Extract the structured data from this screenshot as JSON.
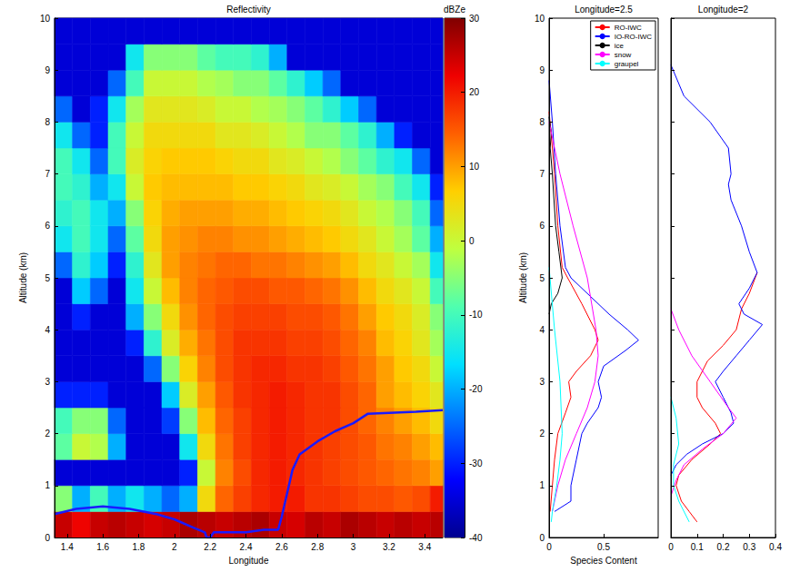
{
  "chart_data": [
    {
      "type": "heatmap",
      "title": "Reflectivity",
      "xlabel": "Longitude",
      "ylabel": "Altitude (km)",
      "xlim": [
        1.33,
        3.5
      ],
      "xticks": [
        1.4,
        1.6,
        1.8,
        2,
        2.2,
        2.4,
        2.6,
        2.8,
        3,
        3.2,
        3.4
      ],
      "ylim": [
        0,
        10
      ],
      "yticks": [
        0,
        1,
        2,
        3,
        4,
        5,
        6,
        7,
        8,
        9,
        10
      ],
      "x": [
        1.38,
        1.48,
        1.58,
        1.68,
        1.78,
        1.88,
        1.98,
        2.08,
        2.18,
        2.28,
        2.38,
        2.48,
        2.58,
        2.68,
        2.78,
        2.88,
        2.98,
        3.08,
        3.18,
        3.28,
        3.38,
        3.48
      ],
      "y": [
        0.25,
        0.75,
        1.25,
        1.75,
        2.25,
        2.75,
        3.25,
        3.75,
        4.25,
        4.75,
        5.25,
        5.75,
        6.25,
        6.75,
        7.25,
        7.75,
        8.25,
        8.75,
        9.25,
        9.75
      ],
      "cells": [
        [
          25,
          22,
          25,
          26,
          25,
          24,
          25,
          27,
          26,
          25,
          26,
          27,
          25,
          24,
          26,
          25,
          27,
          26,
          25,
          26,
          25,
          26
        ],
        [
          -5,
          -20,
          -10,
          -20,
          -15,
          -20,
          -25,
          -20,
          5,
          14,
          17,
          19,
          20,
          20,
          18,
          18,
          17,
          16,
          16,
          15,
          16,
          20
        ],
        [
          -35,
          -35,
          -35,
          -35,
          -35,
          -35,
          -35,
          -30,
          0,
          12,
          16,
          19,
          20,
          19,
          18,
          17,
          16,
          15,
          14,
          13,
          12,
          10
        ],
        [
          -8,
          0,
          -2,
          -20,
          -35,
          -35,
          -35,
          -15,
          5,
          13,
          17,
          19,
          20,
          19,
          18,
          17,
          16,
          15,
          13,
          12,
          10,
          8
        ],
        [
          -10,
          -5,
          -5,
          -25,
          -35,
          -35,
          -28,
          -5,
          8,
          14,
          17,
          19,
          20,
          19,
          18,
          18,
          16,
          14,
          12,
          10,
          8,
          5
        ],
        [
          -30,
          -30,
          -30,
          -35,
          -35,
          -35,
          -18,
          2,
          10,
          15,
          18,
          19,
          20,
          19,
          18,
          18,
          16,
          14,
          10,
          8,
          6,
          3
        ],
        [
          -35,
          -35,
          -35,
          -35,
          -35,
          -25,
          -5,
          6,
          12,
          16,
          18,
          19,
          19,
          18,
          18,
          17,
          15,
          13,
          10,
          7,
          5,
          0
        ],
        [
          -35,
          -35,
          -35,
          -35,
          -30,
          -12,
          2,
          9,
          13,
          16,
          18,
          18,
          18,
          17,
          17,
          16,
          14,
          12,
          8,
          6,
          3,
          -3
        ],
        [
          -35,
          -30,
          -35,
          -35,
          -20,
          -5,
          5,
          11,
          14,
          16,
          17,
          17,
          17,
          16,
          16,
          15,
          13,
          10,
          7,
          5,
          2,
          -5
        ],
        [
          -35,
          -18,
          -25,
          -35,
          -15,
          0,
          8,
          12,
          14,
          15,
          16,
          16,
          15,
          15,
          14,
          13,
          11,
          8,
          5,
          3,
          0,
          -10
        ],
        [
          -25,
          -12,
          -18,
          -30,
          -12,
          3,
          10,
          12,
          13,
          14,
          14,
          13,
          13,
          12,
          11,
          10,
          8,
          5,
          3,
          0,
          -3,
          -15
        ],
        [
          -15,
          -10,
          -15,
          -25,
          -8,
          5,
          10,
          11,
          12,
          12,
          11,
          11,
          10,
          9,
          8,
          7,
          5,
          3,
          0,
          -3,
          -8,
          -20
        ],
        [
          -12,
          -10,
          -15,
          -20,
          -5,
          6,
          9,
          10,
          10,
          10,
          9,
          9,
          8,
          7,
          6,
          5,
          3,
          0,
          -2,
          -5,
          -10,
          -25
        ],
        [
          -10,
          -12,
          -20,
          -15,
          0,
          7,
          8,
          8,
          8,
          8,
          7,
          7,
          6,
          5,
          3,
          2,
          0,
          -3,
          -5,
          -10,
          -15,
          -30
        ],
        [
          -10,
          -15,
          -25,
          -10,
          2,
          6,
          7,
          7,
          7,
          6,
          5,
          5,
          3,
          2,
          0,
          -2,
          -5,
          -8,
          -12,
          -15,
          -25,
          -35
        ],
        [
          -15,
          -25,
          -30,
          -10,
          0,
          5,
          5,
          5,
          5,
          3,
          3,
          2,
          0,
          -2,
          -5,
          -5,
          -8,
          -12,
          -20,
          -30,
          -35,
          -35
        ],
        [
          -25,
          -35,
          -30,
          -15,
          -3,
          3,
          3,
          3,
          2,
          0,
          0,
          -2,
          -3,
          -5,
          -8,
          -12,
          -18,
          -25,
          -35,
          -35,
          -35,
          -35
        ],
        [
          -35,
          -35,
          -35,
          -25,
          -10,
          0,
          0,
          0,
          -2,
          -3,
          -5,
          -5,
          -8,
          -12,
          -18,
          -25,
          -35,
          -35,
          -35,
          -35,
          -35,
          -35
        ],
        [
          -35,
          -35,
          -35,
          -35,
          -15,
          -5,
          -5,
          -5,
          -8,
          -10,
          -10,
          -12,
          -20,
          -35,
          -35,
          -35,
          -35,
          -35,
          -35,
          -35,
          -35,
          -35
        ],
        [
          -35,
          -35,
          -35,
          -35,
          -35,
          -35,
          -35,
          -35,
          -35,
          -35,
          -35,
          -35,
          -35,
          -35,
          -35,
          -35,
          -35,
          -35,
          -35,
          -35,
          -35,
          -35
        ]
      ],
      "colorbar": {
        "label": "dBZe",
        "range": [
          -40,
          30
        ],
        "ticks": [
          -40,
          -30,
          -20,
          -10,
          0,
          10,
          20,
          30
        ]
      },
      "series": [
        {
          "type": "line",
          "color": "#1a1aff",
          "x": [
            1.33,
            1.45,
            1.6,
            1.75,
            1.9,
            2.0,
            2.1,
            2.17,
            2.18,
            2.2,
            2.22,
            2.3,
            2.4,
            2.5,
            2.58,
            2.6,
            2.62,
            2.66,
            2.7,
            2.8,
            2.9,
            3.0,
            3.08,
            3.2,
            3.35,
            3.5
          ],
          "y": [
            0.45,
            0.55,
            0.6,
            0.55,
            0.45,
            0.35,
            0.2,
            0.1,
            0,
            0,
            0.1,
            0.1,
            0.1,
            0.15,
            0.15,
            0.4,
            0.7,
            1.3,
            1.6,
            1.85,
            2.05,
            2.2,
            2.38,
            2.4,
            2.42,
            2.45
          ]
        }
      ]
    },
    {
      "type": "line",
      "title": "Longitude=2.5",
      "xlabel": "Species Content",
      "ylabel": "Altitude (km)",
      "xlim": [
        0,
        1
      ],
      "xticks": [
        0,
        0.5
      ],
      "ylim": [
        0,
        10
      ],
      "yticks": [
        0,
        1,
        2,
        3,
        4,
        5,
        6,
        7,
        8,
        9,
        10
      ],
      "legend": "upper right",
      "series": [
        {
          "name": "RO-IWC",
          "color": "#ff0000",
          "x": [
            0,
            0.03,
            0.05,
            0.08,
            0.12,
            0.17,
            0.3,
            0.42,
            0.45,
            0.38,
            0.25,
            0.18,
            0.2,
            0.15,
            0.08,
            0.05,
            0.03,
            0.01
          ],
          "y": [
            8.2,
            7.5,
            7,
            6,
            5.2,
            5,
            4.5,
            4,
            3.8,
            3.5,
            3.2,
            3,
            2.7,
            2.4,
            2,
            1.5,
            1,
            0.5
          ]
        },
        {
          "name": "IO-RO-IWC",
          "color": "#0000ff",
          "x": [
            0,
            0.03,
            0.06,
            0.1,
            0.15,
            0.2,
            0.35,
            0.55,
            0.72,
            0.82,
            0.7,
            0.5,
            0.45,
            0.48,
            0.45,
            0.35,
            0.3,
            0.25,
            0.2,
            0.2,
            0.05
          ],
          "y": [
            8.8,
            8,
            7,
            6,
            5.2,
            5,
            4.7,
            4.3,
            4,
            3.8,
            3.6,
            3.3,
            3,
            2.7,
            2.5,
            2.2,
            2,
            1.5,
            1,
            0.7,
            0.5
          ]
        },
        {
          "name": "ice",
          "color": "#000000",
          "x": [
            0,
            0.02,
            0.01,
            0.03,
            0.06,
            0.09,
            0.12,
            0.08,
            0.02,
            0
          ],
          "y": [
            8.1,
            7.8,
            7.5,
            7,
            6,
            5.5,
            5,
            4.7,
            4.5,
            4.3
          ]
        },
        {
          "name": "snow",
          "color": "#ff00ff",
          "x": [
            0,
            0.1,
            0.22,
            0.35,
            0.43,
            0.45,
            0.42,
            0.35,
            0.25,
            0.15,
            0.08,
            0.03
          ],
          "y": [
            8,
            7,
            6,
            5,
            4,
            3.5,
            3,
            2.5,
            2,
            1.5,
            1,
            0.5
          ]
        },
        {
          "name": "graupel",
          "color": "#00ffff",
          "x": [
            0,
            0.05,
            0.1,
            0.12,
            0.1,
            0.07,
            0.03,
            0.02
          ],
          "y": [
            5.2,
            4,
            3,
            2,
            1.5,
            1,
            0.5,
            0.3
          ]
        }
      ]
    },
    {
      "type": "line",
      "title": "Longitude=2",
      "xlim": [
        0,
        0.4
      ],
      "xticks": [
        0,
        0.1,
        0.2,
        0.3,
        0.4
      ],
      "ylim": [
        0,
        10
      ],
      "yticks": [
        0,
        1,
        2,
        3,
        4,
        5,
        6,
        7,
        8,
        9,
        10
      ],
      "tick_labels": "x",
      "series": [
        {
          "name": "RO-IWC",
          "color": "#ff0000",
          "x": [
            0.33,
            0.3,
            0.27,
            0.25,
            0.2,
            0.14,
            0.1,
            0.1,
            0.12,
            0.17,
            0.19,
            0.15,
            0.08,
            0.03,
            0.02,
            0.04,
            0.07,
            0.1
          ],
          "y": [
            5.1,
            4.7,
            4.4,
            4,
            3.7,
            3.4,
            3,
            2.7,
            2.5,
            2.2,
            2,
            1.8,
            1.5,
            1.2,
            1,
            0.7,
            0.5,
            0.3
          ]
        },
        {
          "name": "IO-RO-IWC",
          "color": "#0000ff",
          "x": [
            0,
            0.05,
            0.15,
            0.22,
            0.23,
            0.22,
            0.23,
            0.27,
            0.3,
            0.33,
            0.3,
            0.26,
            0.28,
            0.35,
            0.3,
            0.25,
            0.2,
            0.17,
            0.2,
            0.23,
            0.24,
            0.2,
            0.12,
            0.06,
            0.02,
            0
          ],
          "y": [
            9.1,
            8.5,
            8,
            7.5,
            7,
            6.8,
            6.5,
            6,
            5.5,
            5.1,
            4.8,
            4.5,
            4.3,
            4.1,
            3.8,
            3.5,
            3.2,
            3,
            2.7,
            2.4,
            2.2,
            2,
            1.8,
            1.6,
            1.4,
            1.2
          ]
        },
        {
          "name": "snow",
          "color": "#ff00ff",
          "x": [
            0,
            0.03,
            0.08,
            0.15,
            0.22,
            0.25,
            0.2,
            0.12,
            0.05,
            0.02,
            0
          ],
          "y": [
            4.4,
            4,
            3.5,
            3,
            2.5,
            2.3,
            2,
            1.7,
            1.4,
            1.1,
            0.8
          ]
        },
        {
          "name": "graupel",
          "color": "#00ffff",
          "x": [
            0,
            0.02,
            0.03,
            0.01,
            0.01,
            0.03,
            0.07
          ],
          "y": [
            2.7,
            2.3,
            1.8,
            1.4,
            1,
            0.7,
            0.3
          ]
        }
      ]
    }
  ]
}
